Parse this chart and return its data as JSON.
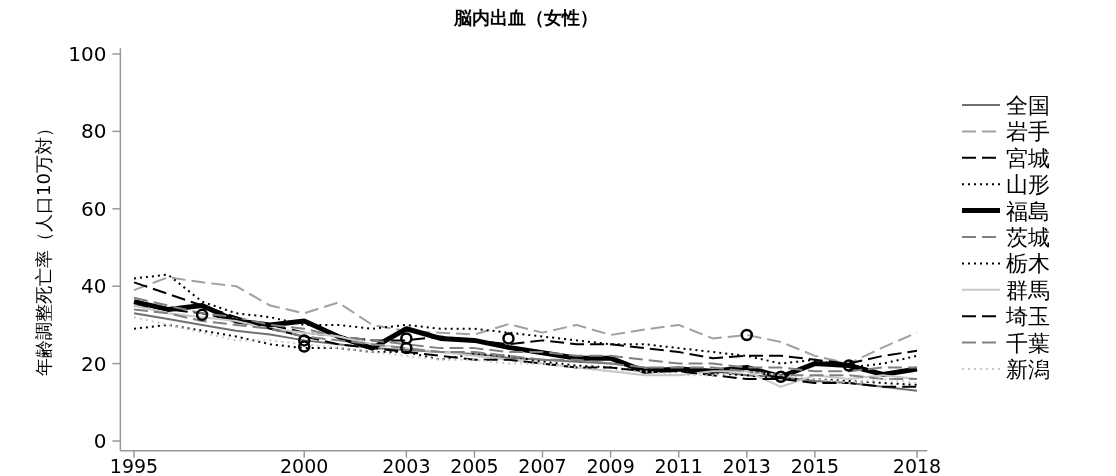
{
  "chart_data": {
    "type": "line",
    "title": "脳内出血（女性）",
    "ylabel": "年齢調整死亡率（人口10万対）",
    "x": [
      1995,
      1996,
      1997,
      1998,
      1999,
      2000,
      2001,
      2002,
      2003,
      2004,
      2005,
      2006,
      2007,
      2008,
      2009,
      2010,
      2011,
      2012,
      2013,
      2014,
      2015,
      2016,
      2017,
      2018
    ],
    "xlim": [
      1994.6,
      2018.3
    ],
    "xticks": [
      1995,
      2000,
      2003,
      2005,
      2007,
      2009,
      2011,
      2013,
      2015,
      2018
    ],
    "ylim": [
      -2.5,
      101.5
    ],
    "yticks": [
      0,
      20,
      40,
      60,
      80,
      100
    ],
    "grid": false,
    "legend": "right",
    "marker": "none",
    "series": [
      {
        "name": "全国",
        "color": "#707070",
        "line_style": "solid",
        "values": [
          33,
          31.5,
          30,
          28.5,
          27.5,
          26,
          25,
          24,
          23.5,
          23,
          22.5,
          21.5,
          21,
          20.5,
          20,
          19,
          18.5,
          18,
          17,
          16.5,
          15.5,
          15,
          14,
          13
        ]
      },
      {
        "name": "岩手",
        "color": "#a0a0a0",
        "line_style": "dashed",
        "values": [
          39,
          42.3,
          41,
          40,
          35,
          33,
          35.8,
          30,
          28.4,
          28,
          27.5,
          30.2,
          28,
          30,
          27.4,
          28.8,
          30,
          26.5,
          27.4,
          25.6,
          22,
          20,
          24.2,
          28
        ]
      },
      {
        "name": "宮城",
        "color": "#000000",
        "line_style": "dashed",
        "values": [
          35,
          34,
          33,
          31,
          30,
          28,
          27,
          26,
          26,
          27,
          26,
          25,
          26,
          25,
          25,
          24,
          23,
          21.4,
          22,
          22,
          21,
          20,
          22,
          23.3
        ]
      },
      {
        "name": "山形",
        "color": "#000000",
        "line_style": "dotted",
        "values": [
          29,
          30,
          28.5,
          27,
          25,
          24,
          24,
          23,
          23,
          21,
          22.5,
          22,
          20.5,
          19.5,
          19,
          18,
          18,
          17.5,
          17,
          16,
          16,
          15.5,
          15,
          14.5
        ]
      },
      {
        "name": "福島",
        "color": "#000000",
        "line_style": "solid",
        "values": [
          36,
          34,
          35,
          31,
          30,
          31,
          27,
          24,
          29,
          26.5,
          26,
          24.2,
          22.8,
          21.4,
          21.4,
          18,
          18.6,
          18,
          19,
          16.6,
          20,
          19.5,
          17.2,
          18.6
        ]
      },
      {
        "name": "茨城",
        "color": "#808080",
        "line_style": "dashed",
        "values": [
          37,
          35,
          33,
          32,
          30,
          29,
          27,
          26,
          25,
          24,
          24,
          23,
          23,
          22,
          22,
          21,
          20,
          20,
          19,
          19,
          18,
          18,
          19,
          19
        ]
      },
      {
        "name": "栃木",
        "color": "#000000",
        "line_style": "dotted",
        "values": [
          42,
          43,
          36,
          33,
          32,
          30,
          30,
          29,
          30,
          29,
          29,
          28,
          27,
          26,
          25,
          25,
          24,
          23,
          22,
          20,
          21,
          19,
          20,
          22
        ]
      },
      {
        "name": "群馬",
        "color": "#c8c8c8",
        "line_style": "solid",
        "values": [
          35,
          33,
          32,
          31,
          29,
          28,
          27,
          25,
          24,
          23,
          22,
          21,
          20,
          19,
          18,
          17,
          17,
          18,
          18,
          14,
          17,
          16,
          17,
          16
        ]
      },
      {
        "name": "埼玉",
        "color": "#000000",
        "line_style": "dashed",
        "values": [
          41,
          38,
          35,
          32,
          29,
          27,
          25,
          24,
          23,
          22,
          21,
          21,
          20,
          19,
          19,
          18,
          18,
          17,
          16,
          16,
          15,
          15,
          14,
          14
        ]
      },
      {
        "name": "千葉",
        "color": "#808080",
        "line_style": "dashed",
        "values": [
          34,
          33,
          31,
          30,
          29,
          27,
          26,
          25,
          24,
          23,
          23,
          22,
          21,
          21,
          20,
          19,
          19,
          19,
          18,
          17,
          17,
          17,
          16,
          16
        ]
      },
      {
        "name": "新潟",
        "color": "#c8c8c8",
        "line_style": "dotted",
        "values": [
          32,
          30,
          28,
          26,
          26,
          25,
          24,
          23,
          22,
          21,
          21,
          20,
          20,
          19,
          18,
          18,
          17,
          17,
          18,
          17,
          16,
          15,
          16,
          15
        ]
      },
      {
        "type": "scatter",
        "color": "#000000",
        "marker": "circle",
        "x": [
          1997,
          2000,
          2000,
          2003,
          2003,
          2006,
          2013,
          2014,
          2016
        ],
        "values": [
          32.6,
          26,
          24.4,
          26.5,
          24,
          26.5,
          27.4,
          16.6,
          19.5
        ]
      }
    ]
  }
}
